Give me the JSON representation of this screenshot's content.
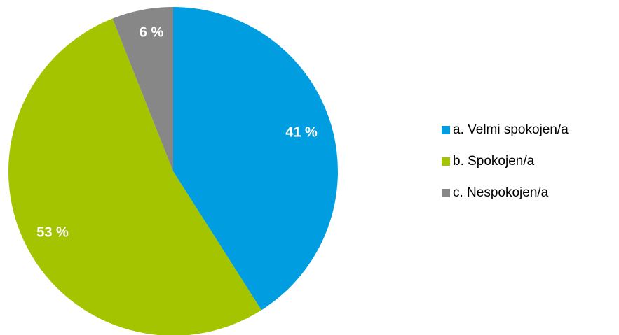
{
  "chart_data": {
    "type": "pie",
    "title": "",
    "legend_position": "right",
    "slices": [
      {
        "label": "a. Velmi spokojen/a",
        "value": 41,
        "display": "41 %",
        "color": "#009ee0"
      },
      {
        "label": "b. Spokojen/a",
        "value": 53,
        "display": "53 %",
        "color": "#a4c400"
      },
      {
        "label": "c. Nespokojen/a",
        "value": 6,
        "display": "6 %",
        "color": "#878787"
      }
    ]
  }
}
